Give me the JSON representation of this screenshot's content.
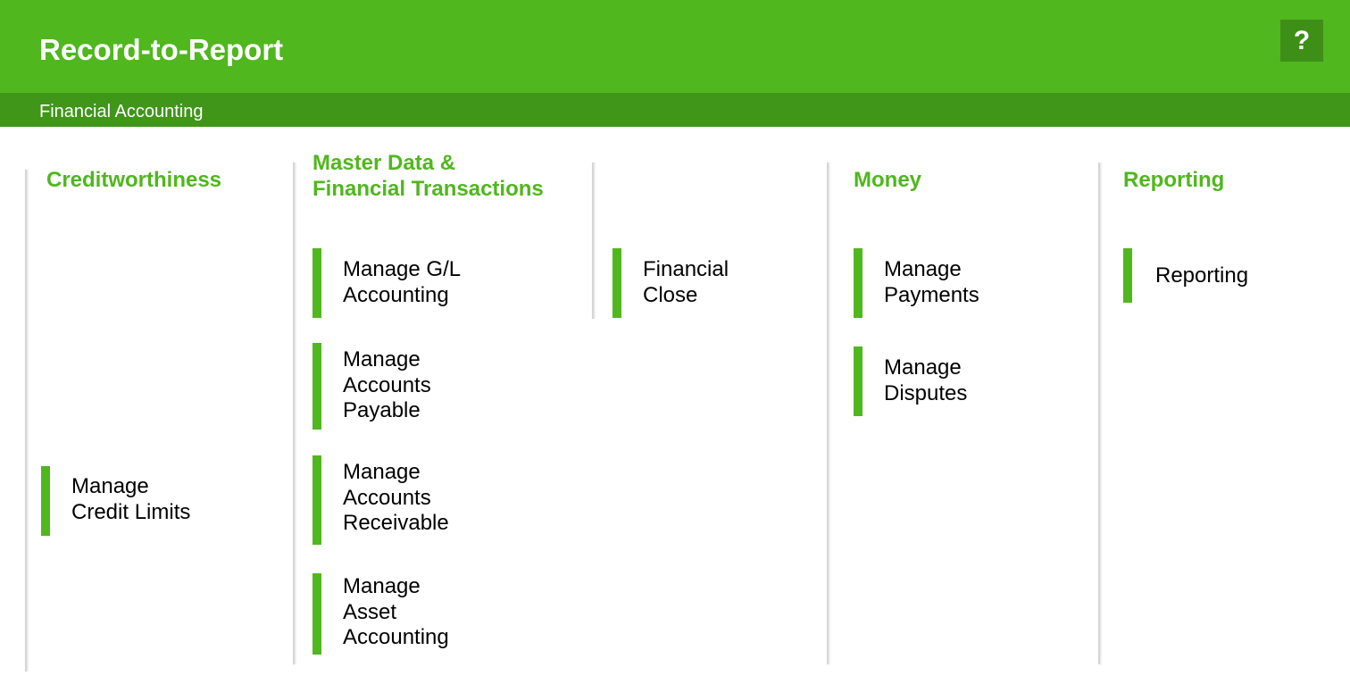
{
  "header": {
    "title": "Record-to-Report",
    "help_label": "?"
  },
  "subheader": {
    "breadcrumb": "Financial Accounting"
  },
  "columns": [
    {
      "title": "Creditworthiness",
      "tiles": [
        {
          "label": "Manage\nCredit Limits"
        }
      ]
    },
    {
      "title": "Master Data &\nFinancial Transactions",
      "tiles": [
        {
          "label": "Manage G/L\nAccounting"
        },
        {
          "label": "Manage\nAccounts\nPayable"
        },
        {
          "label": "Manage\nAccounts\nReceivable"
        },
        {
          "label": "Manage\nAsset\nAccounting"
        }
      ]
    },
    {
      "title": "",
      "tiles": [
        {
          "label": "Financial\nClose"
        }
      ]
    },
    {
      "title": "Money",
      "tiles": [
        {
          "label": "Manage\nPayments"
        },
        {
          "label": "Manage\nDisputes"
        }
      ]
    },
    {
      "title": "Reporting",
      "tiles": [
        {
          "label": "Reporting"
        }
      ]
    }
  ],
  "colors": {
    "brand_green": "#50b71e",
    "dark_green": "#3f9619"
  }
}
